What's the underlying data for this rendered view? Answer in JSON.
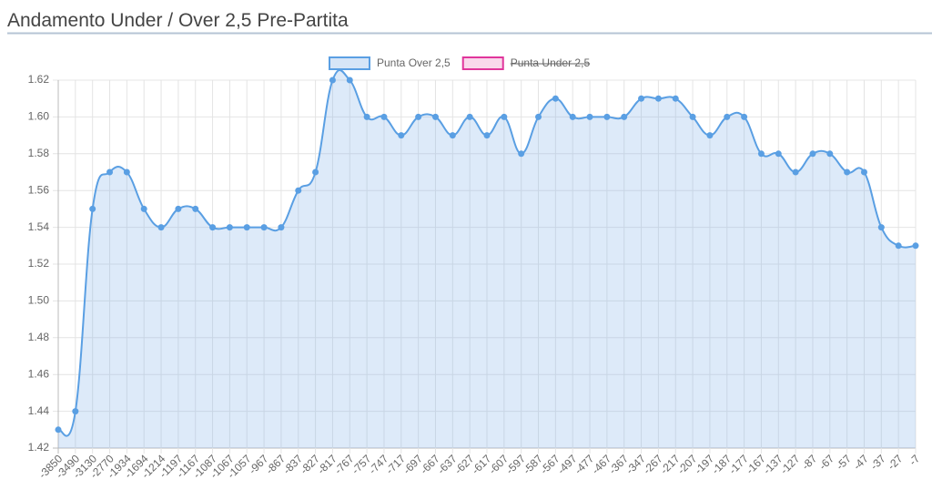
{
  "chart_data": {
    "type": "line",
    "title": "Andamento Under / Over 2,5 Pre-Partita",
    "categories": [
      "-3850",
      "-3490",
      "-3130",
      "-2770",
      "-1934",
      "-1694",
      "-1214",
      "-1197",
      "-1167",
      "-1087",
      "-1067",
      "-1057",
      "-967",
      "-867",
      "-837",
      "-827",
      "-817",
      "-767",
      "-757",
      "-747",
      "-717",
      "-697",
      "-667",
      "-637",
      "-627",
      "-617",
      "-607",
      "-597",
      "-587",
      "-567",
      "-497",
      "-477",
      "-467",
      "-367",
      "-347",
      "-267",
      "-217",
      "-207",
      "-197",
      "-187",
      "-177",
      "-167",
      "-137",
      "-127",
      "-87",
      "-67",
      "-57",
      "-47",
      "-37",
      "-27",
      "-7"
    ],
    "series": [
      {
        "name": "Punta Over 2,5",
        "color": "#5a9fe3",
        "fill": "rgba(120,170,230,0.25)",
        "values": [
          1.43,
          1.44,
          1.55,
          1.57,
          1.57,
          1.55,
          1.54,
          1.55,
          1.55,
          1.54,
          1.54,
          1.54,
          1.54,
          1.54,
          1.56,
          1.57,
          1.62,
          1.62,
          1.6,
          1.6,
          1.59,
          1.6,
          1.6,
          1.59,
          1.6,
          1.59,
          1.6,
          1.58,
          1.6,
          1.61,
          1.6,
          1.6,
          1.6,
          1.6,
          1.61,
          1.61,
          1.61,
          1.6,
          1.59,
          1.6,
          1.6,
          1.58,
          1.58,
          1.57,
          1.58,
          1.58,
          1.57,
          1.57,
          1.54,
          1.53,
          1.53
        ]
      }
    ],
    "hidden_series": [
      {
        "name": "Punta Under 2,5",
        "color": "#e0359b"
      }
    ],
    "ylim": [
      1.42,
      1.62
    ],
    "yticks": [
      1.42,
      1.44,
      1.46,
      1.48,
      {
        "value": 1.5,
        "label": "1.50"
      },
      1.52,
      1.54,
      1.56,
      1.58,
      {
        "value": 1.6,
        "label": "1.60"
      },
      1.62
    ],
    "grid": true,
    "legend": "top"
  }
}
